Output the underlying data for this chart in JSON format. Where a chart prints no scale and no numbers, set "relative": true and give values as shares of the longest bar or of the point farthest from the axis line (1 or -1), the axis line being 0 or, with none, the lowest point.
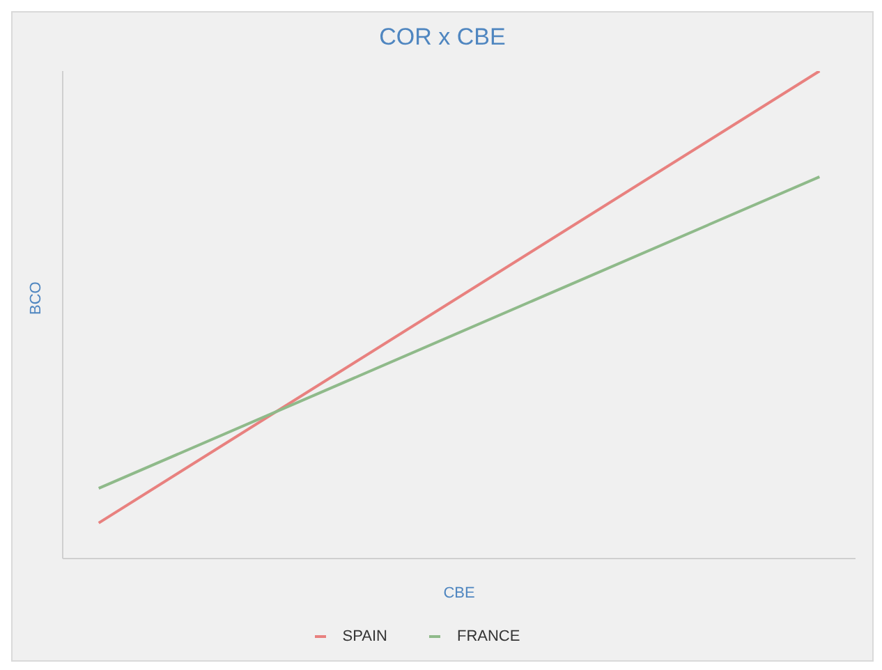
{
  "chart_data": {
    "type": "line",
    "title": "COR x CBE",
    "xlabel": "CBE",
    "ylabel": "BCO",
    "relative": true,
    "categories": [
      null,
      null
    ],
    "series": [
      {
        "name": "SPAIN",
        "color": "#e8817f",
        "values": [
          0.073,
          1
        ]
      },
      {
        "name": "FRANCE",
        "color": "#8fba8a",
        "values": [
          0.144,
          0.783
        ]
      }
    ],
    "legend": "bottom",
    "marker": "none",
    "line_style": "solid",
    "grid": false
  }
}
